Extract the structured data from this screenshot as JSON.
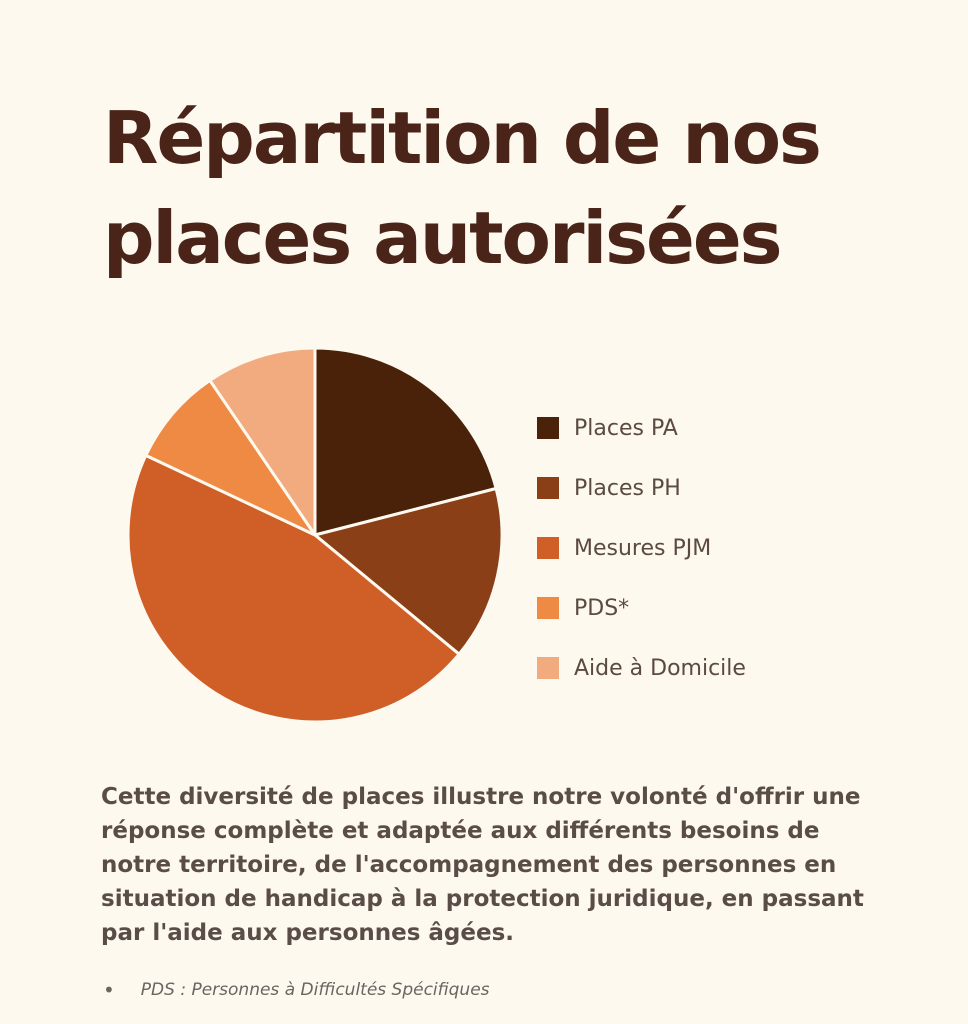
{
  "title_lines": [
    "Répartition de nos",
    "places autorisées"
  ],
  "chart_data": {
    "type": "pie",
    "title": "Répartition de nos places autorisées",
    "labels": [
      "Places PA",
      "Places PH",
      "Mesures PJM",
      "PDS*",
      "Aide à Domicile"
    ],
    "values": [
      21,
      15,
      46,
      8.5,
      9.5
    ],
    "colors": [
      "#4a2109",
      "#8a3f17",
      "#cf5f27",
      "#ef8a45",
      "#f1ab7e"
    ],
    "start_angle_deg": 0,
    "slice_border": "#fdf9ef",
    "legend_position": "right"
  },
  "description": "Cette diversité de places illustre notre volonté d'offrir une réponse complète et adaptée aux différents besoins de notre territoire, de l'accompagnement des personnes en situation de handicap à la protection juridique, en passant par l'aide aux personnes âgées.",
  "footnote": {
    "bullet": "•",
    "text": "PDS : Personnes à Difficultés Spécifiques"
  }
}
